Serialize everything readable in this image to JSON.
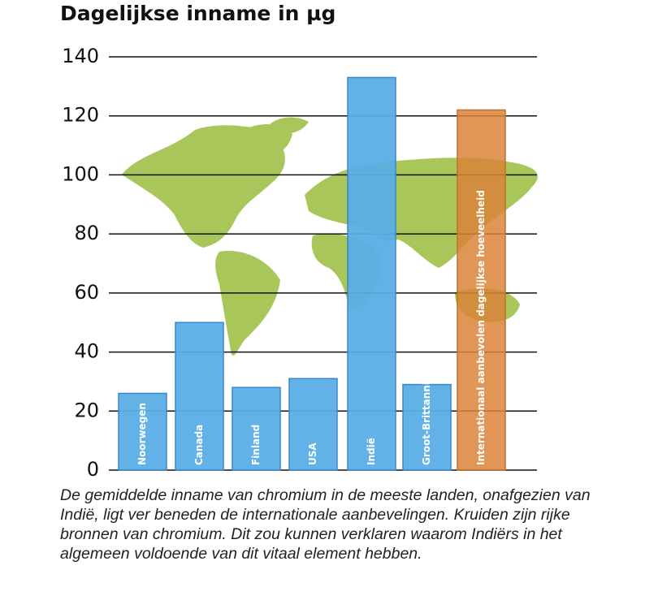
{
  "chart_data": {
    "type": "bar",
    "title": "Dagelijkse inname in µg",
    "categories": [
      "Noorwegen",
      "Canada",
      "Finland",
      "USA",
      "Indië",
      "Groot-Brittannië",
      "Internationaal aanbevolen dagelijkse hoeveelheid"
    ],
    "values": [
      26,
      50,
      28,
      31,
      133,
      29,
      122
    ],
    "colors": [
      "#5aaee6",
      "#5aaee6",
      "#5aaee6",
      "#5aaee6",
      "#5aaee6",
      "#5aaee6",
      "#d9843a"
    ],
    "ylim": [
      0,
      140
    ],
    "yticks": [
      0,
      20,
      40,
      60,
      80,
      100,
      120,
      140
    ],
    "grid": true,
    "caption": "De gemiddelde inname van chromium in de meeste landen, onafgezien van Indië, ligt ver beneden de internationale aanbevelingen. Kruiden zijn rijke bronnen van chromium. Dit zou kunnen verklaren waarom Indiërs in het algemeen voldoende van dit vitaal element hebben."
  }
}
